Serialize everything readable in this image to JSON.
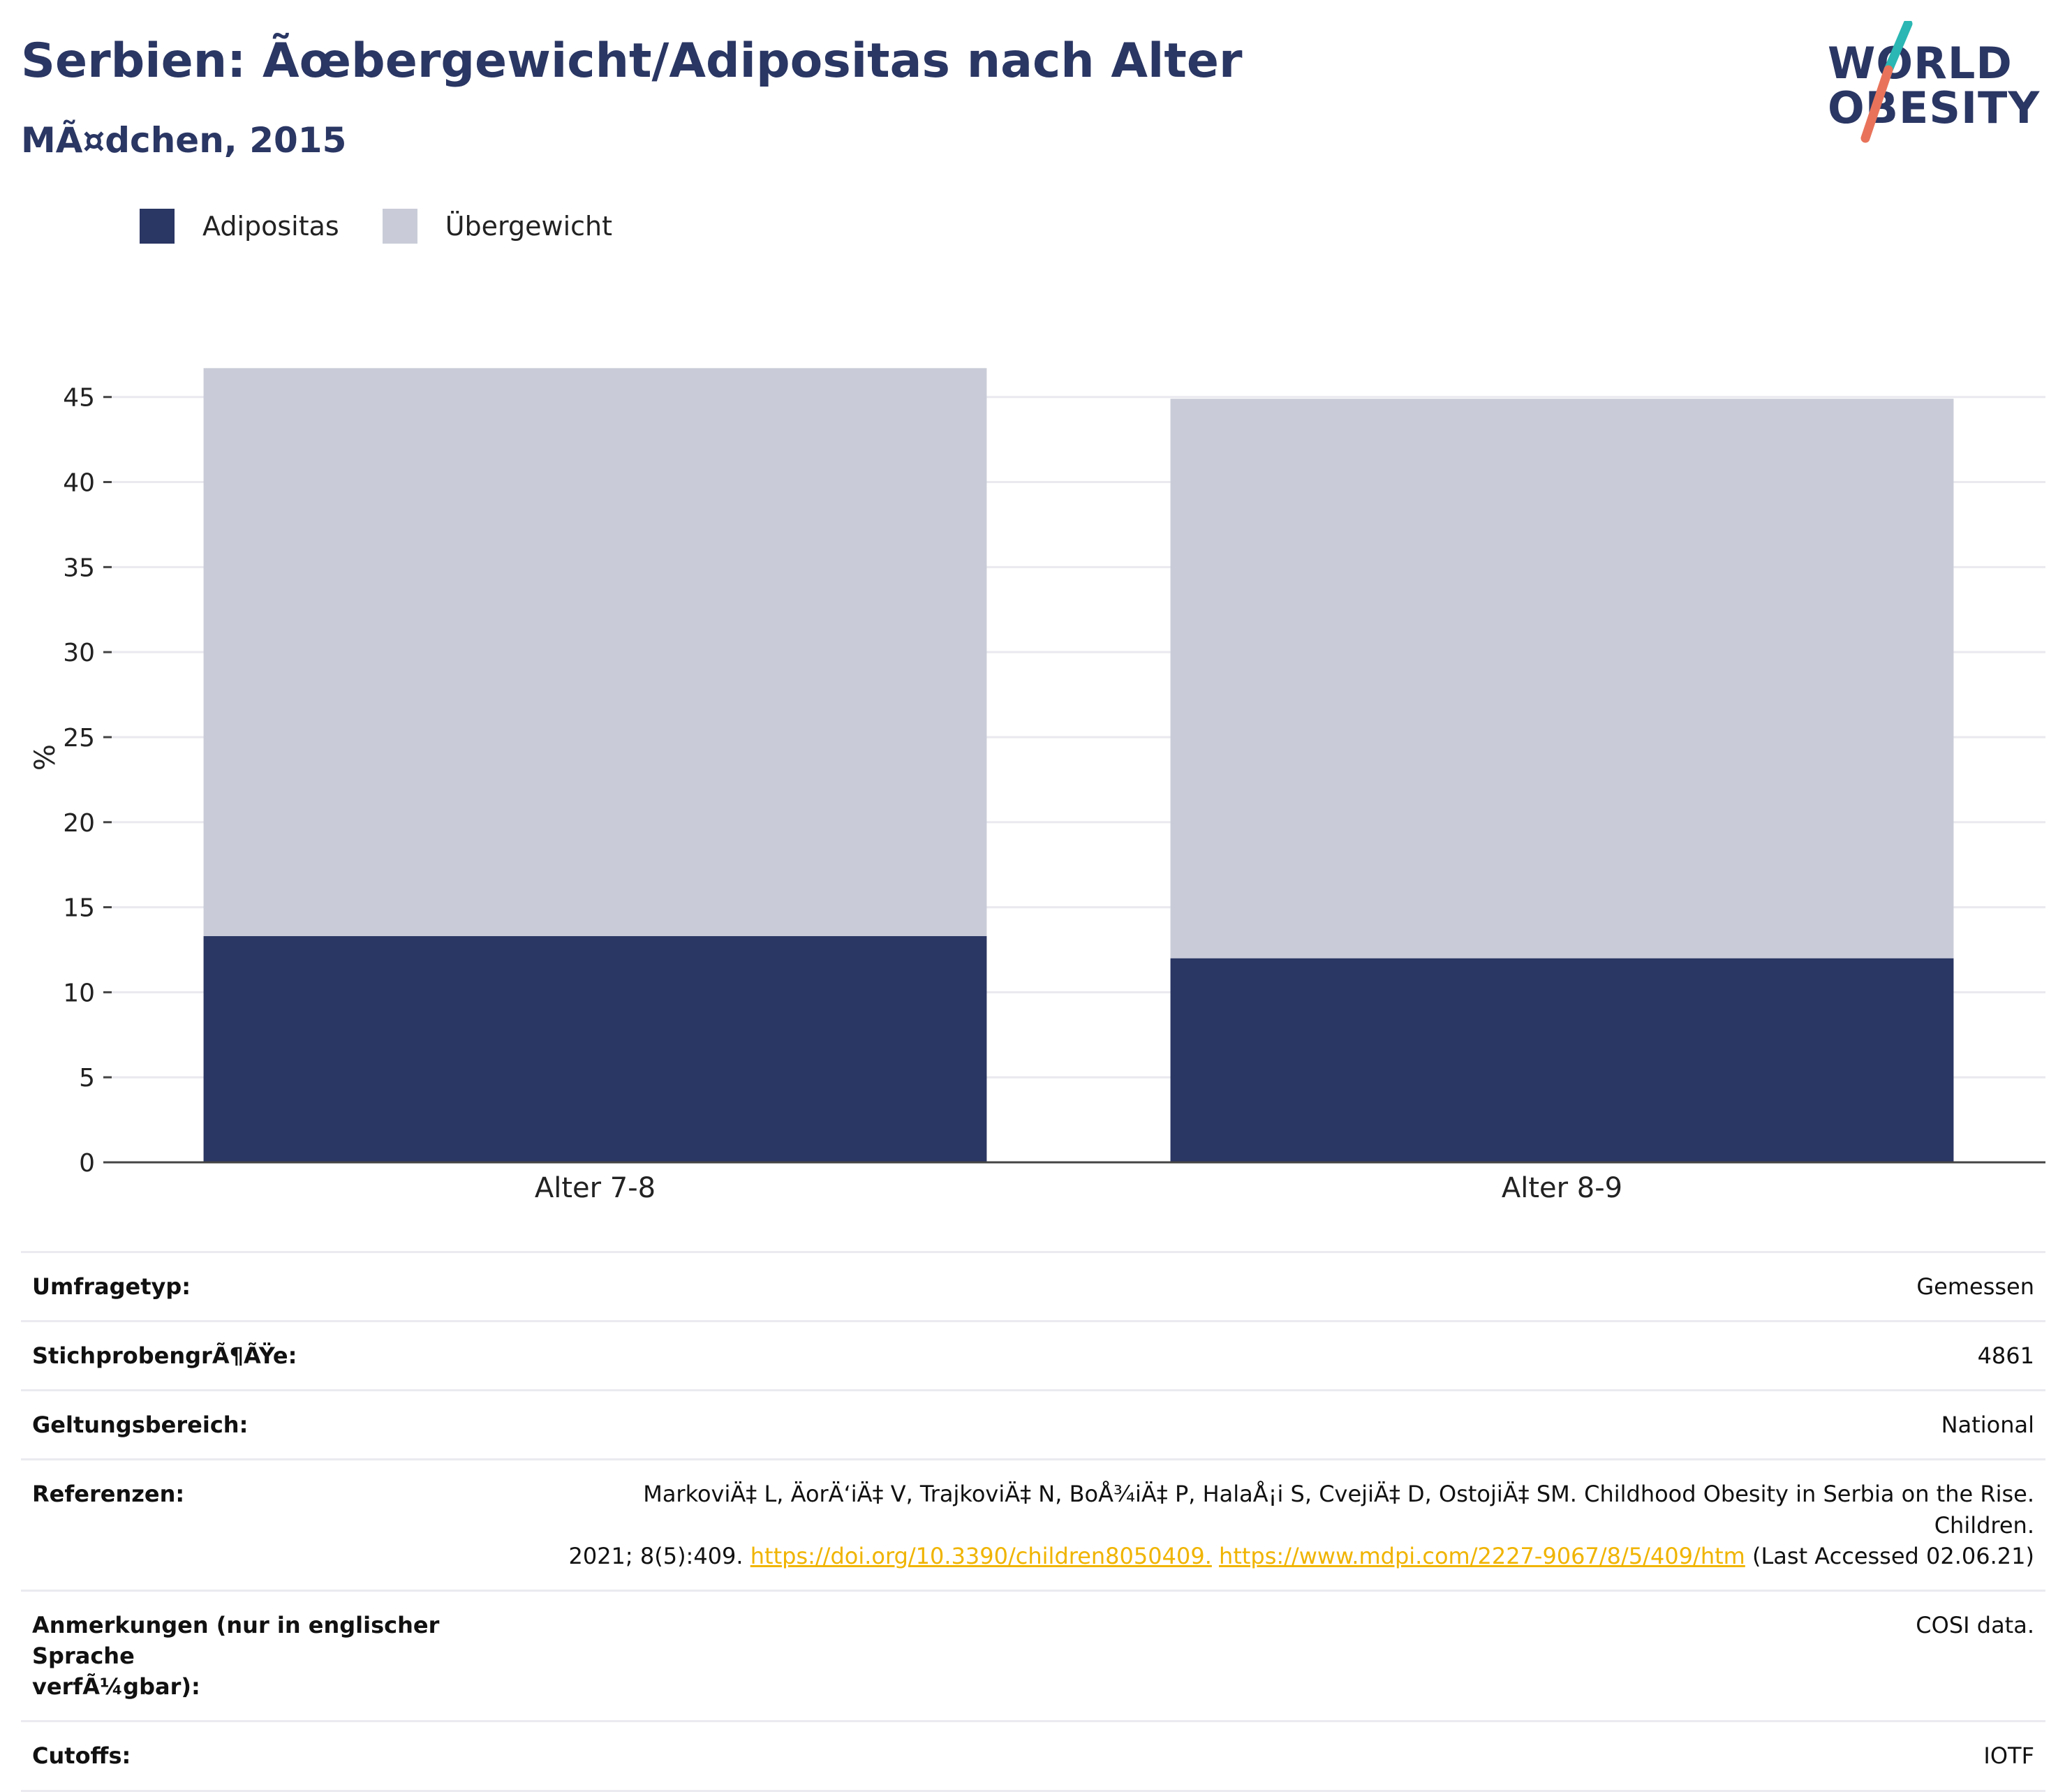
{
  "header": {
    "title": "Serbien: Ãœbergewicht/Adipositas nach Alter",
    "subtitle": "MÃ¤dchen, 2015",
    "logo_line1": "WORLD",
    "logo_line2": "OBESITY",
    "logo_colors": {
      "text": "#2a3663",
      "slash_top": "#2bb7b3",
      "slash_bottom": "#e8735a"
    }
  },
  "legend": [
    {
      "label": "Adipositas",
      "color": "#2a3663"
    },
    {
      "label": "Übergewicht",
      "color": "#c9ccd8"
    }
  ],
  "chart_data": {
    "type": "bar",
    "stacked": true,
    "categories": [
      "Alter 7-8",
      "Alter 8-9"
    ],
    "series": [
      {
        "name": "Adipositas",
        "values": [
          13.3,
          12.0
        ],
        "color": "#2a3663"
      },
      {
        "name": "Übergewicht",
        "values": [
          33.4,
          32.9
        ],
        "color": "#c9ccd8"
      }
    ],
    "ylabel": "%",
    "xlabel": "",
    "ylim": [
      0,
      47
    ],
    "yticks": [
      0,
      5,
      10,
      15,
      20,
      25,
      30,
      35,
      40,
      45
    ],
    "grid": true
  },
  "meta": {
    "survey_label": "Umfragetyp:",
    "survey_value": "Gemessen",
    "sample_label": "StichprobengrÃ¶ÃŸe:",
    "sample_value": "4861",
    "scope_label": "Geltungsbereich:",
    "scope_value": "National",
    "refs_label": "Referenzen:",
    "refs_text1": "MarkoviÄ‡ L, ÄorÄ‘iÄ‡ V, TrajkoviÄ‡ N, BoÅ¾iÄ‡ P, HalaÅ¡i S, CvejiÄ‡ D, OstojiÄ‡ SM. Childhood Obesity in Serbia on the Rise. Children.",
    "refs_text2": "2021; 8(5):409.",
    "refs_link1": "https://doi.org/10.3390/children8050409.",
    "refs_link2": "https://www.mdpi.com/2227-9067/8/5/409/htm",
    "refs_tail": "(Last Accessed 02.06.21)",
    "notes_label1": "Anmerkungen (nur in englischer Sprache",
    "notes_label2": "verfÃ¼gbar):",
    "notes_value": "COSI data.",
    "cutoffs_label": "Cutoffs:",
    "cutoffs_value": "IOTF"
  }
}
